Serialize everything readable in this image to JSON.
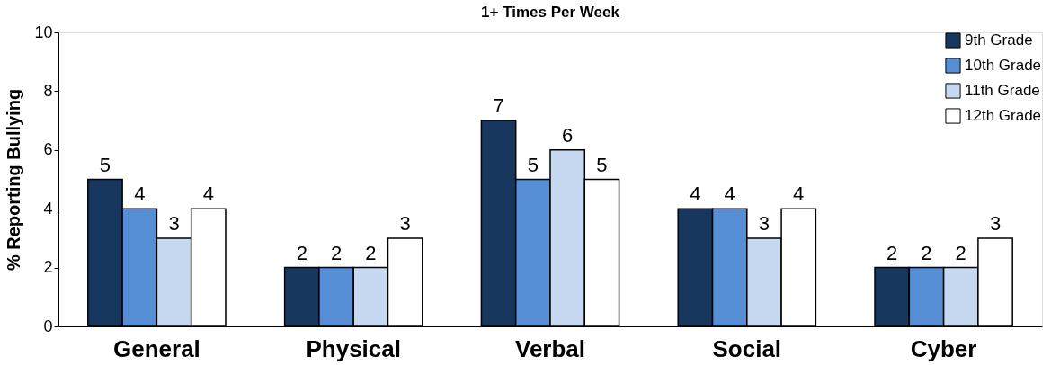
{
  "chart_data": {
    "type": "bar",
    "title": "1+ Times Per Week",
    "ylabel": "% Reporting Bullying",
    "categories": [
      "General",
      "Physical",
      "Verbal",
      "Social",
      "Cyber"
    ],
    "series": [
      {
        "name": "9th Grade",
        "color": "#17375e",
        "values": [
          5,
          2,
          7,
          4,
          2
        ]
      },
      {
        "name": "10th Grade",
        "color": "#558ed5",
        "values": [
          4,
          2,
          5,
          4,
          2
        ]
      },
      {
        "name": "11th Grade",
        "color": "#c6d9f1",
        "values": [
          3,
          2,
          6,
          3,
          2
        ]
      },
      {
        "name": "12th Grade",
        "color": "#ffffff",
        "values": [
          4,
          3,
          5,
          4,
          3
        ]
      }
    ],
    "ylim": [
      0,
      10
    ],
    "yticks": [
      0,
      2,
      4,
      6,
      8,
      10
    ],
    "grid": false,
    "legend": "top right",
    "data_labels": true
  }
}
